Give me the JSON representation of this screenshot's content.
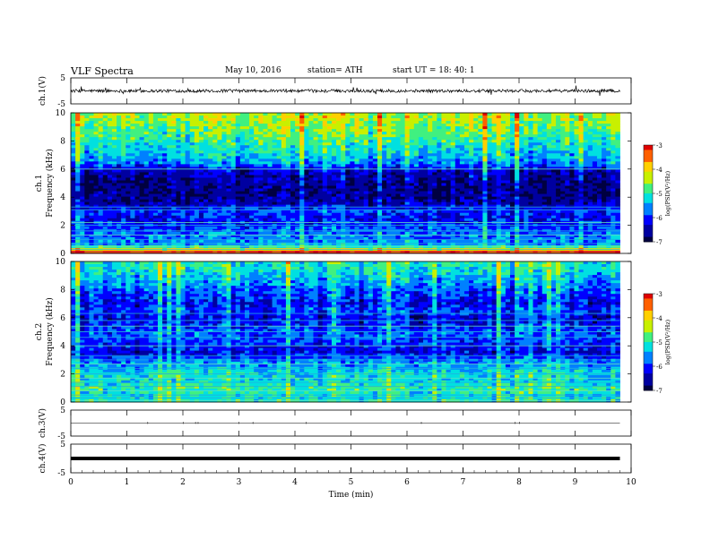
{
  "header": {
    "title": "VLF  Spectra",
    "date": "May 10, 2016",
    "station": "station= ATH",
    "start": "start  UT =   18: 40: 1"
  },
  "colors": {
    "colormap": [
      "#000040",
      "#0000a0",
      "#0000ff",
      "#0080ff",
      "#00e0e0",
      "#40f080",
      "#c8f000",
      "#ffd000",
      "#ff6000",
      "#e00000",
      "#ffc8c8"
    ],
    "trace": "#000000"
  },
  "chart_data": [
    {
      "type": "line",
      "panel": "ch1-waveform",
      "ylabel": "ch.1(V)",
      "ylim": [
        -5,
        5
      ],
      "yticks": [
        "5",
        "-5"
      ],
      "mean_level": 0.0,
      "noise_amplitude": 0.6,
      "xlim": [
        0,
        10
      ],
      "data_end_min": 9.8
    },
    {
      "type": "heatmap",
      "panel": "ch1-spectrogram",
      "ylabel": "ch.1\nFrequency  (kHz)",
      "ylim": [
        0,
        10
      ],
      "yticks": [
        "0",
        "2",
        "4",
        "6",
        "8",
        "10"
      ],
      "xlim": [
        0,
        10
      ],
      "data_end_min": 9.8,
      "colorbar": {
        "label": "log(PSD(V²/Hz)",
        "range": [
          -7,
          -3
        ],
        "ticks": [
          "-3",
          "-4",
          "-5",
          "-6",
          "-7"
        ]
      },
      "profile_khz": [
        0,
        0.3,
        0.6,
        1,
        1.5,
        2,
        2.5,
        3,
        3.5,
        4,
        5,
        5.8,
        6.5,
        7.5,
        8.5,
        9.5,
        10
      ],
      "profile_logpsd": [
        -3.4,
        -4.2,
        -5.6,
        -5.7,
        -5.8,
        -6.0,
        -6.2,
        -6.0,
        -6.5,
        -6.7,
        -6.7,
        -6.5,
        -5.6,
        -5.2,
        -4.8,
        -4.5,
        -4.4
      ],
      "tones_khz": [
        0.05,
        0.15,
        0.3,
        0.5,
        0.7,
        1.0,
        1.3,
        1.6,
        2.0,
        2.2,
        3.1,
        3.3,
        6.0
      ]
    },
    {
      "type": "heatmap",
      "panel": "ch2-spectrogram",
      "ylabel": "ch.2\nFrequency  (kHz)",
      "ylim": [
        0,
        10
      ],
      "yticks": [
        "0",
        "2",
        "4",
        "6",
        "8",
        "10"
      ],
      "xlim": [
        0,
        10
      ],
      "data_end_min": 9.8,
      "colorbar": {
        "label": "log(PSD(V²/Hz)",
        "range": [
          -7,
          -3
        ],
        "ticks": [
          "-3",
          "-4",
          "-5",
          "-6",
          "-7"
        ]
      },
      "profile_khz": [
        0,
        0.5,
        1,
        1.5,
        2,
        2.5,
        3,
        3.5,
        4,
        4.5,
        5,
        5.5,
        6,
        6.5,
        7,
        8,
        9,
        10
      ],
      "profile_logpsd": [
        -5.0,
        -5.2,
        -4.9,
        -5.3,
        -5.2,
        -5.5,
        -5.7,
        -6.3,
        -6.1,
        -5.9,
        -5.8,
        -6.1,
        -6.3,
        -5.9,
        -6.2,
        -5.8,
        -5.3,
        -5.0
      ],
      "tones_khz": [
        0.1,
        0.3,
        0.5,
        0.8,
        1.1,
        1.4,
        1.7,
        2.0,
        2.4,
        2.7,
        3.0,
        3.3,
        4.0,
        4.6,
        5.0,
        5.4,
        5.8,
        6.3
      ]
    },
    {
      "type": "line",
      "panel": "ch3-waveform",
      "ylabel": "ch.3(V)",
      "ylim": [
        -5,
        5
      ],
      "yticks": [
        "5",
        "-5"
      ],
      "mean_level": 0.0,
      "noise_amplitude": 0.02,
      "xlim": [
        0,
        10
      ],
      "data_end_min": 9.8
    },
    {
      "type": "line",
      "panel": "ch4-waveform",
      "ylabel": "ch.4(V)",
      "ylim": [
        -5,
        5
      ],
      "yticks": [
        "5",
        "-5"
      ],
      "mean_level": 0.0,
      "noise_amplitude": 0.0,
      "xlim": [
        0,
        10
      ],
      "data_end_min": 9.8
    }
  ],
  "x_axis": {
    "label": "Time  (min)",
    "ticks": [
      "0",
      "1",
      "2",
      "3",
      "4",
      "5",
      "6",
      "7",
      "8",
      "9",
      "10"
    ]
  }
}
